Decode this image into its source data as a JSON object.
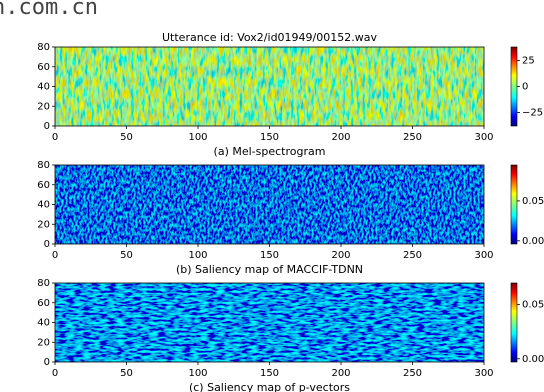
{
  "watermark": "n.com.cn",
  "chart_data": [
    {
      "type": "heatmap",
      "title": "Utterance id: Vox2/id01949/00152.wav",
      "caption": "(a) Mel-spectrogram",
      "xlim": [
        0,
        300
      ],
      "xticks": [
        0,
        50,
        100,
        150,
        200,
        250,
        300
      ],
      "ylim": [
        0,
        80
      ],
      "yticks": [
        0,
        20,
        40,
        60,
        80
      ],
      "colormap": "jet",
      "colorbar": {
        "lim": [
          -38,
          38
        ],
        "ticks": [
          {
            "value": -25,
            "label": "−25"
          },
          0,
          25
        ]
      }
    },
    {
      "type": "heatmap",
      "caption": "(b) Saliency map of MACCIF-TDNN",
      "xlim": [
        0,
        300
      ],
      "xticks": [
        0,
        50,
        100,
        150,
        200,
        250,
        300
      ],
      "ylim": [
        0,
        80
      ],
      "yticks": [
        0,
        20,
        40,
        60,
        80
      ],
      "colormap": "jet",
      "colorbar": {
        "lim": [
          -0.004,
          0.095
        ],
        "ticks": [
          {
            "value": 0,
            "label": "0.00"
          },
          0.05
        ]
      }
    },
    {
      "type": "heatmap",
      "caption": "(c) Saliency map of p-vectors",
      "xlim": [
        0,
        300
      ],
      "xticks": [
        0,
        50,
        100,
        150,
        200,
        250,
        300
      ],
      "ylim": [
        0,
        80
      ],
      "yticks": [
        0,
        20,
        40,
        60,
        80
      ],
      "colormap": "jet",
      "colorbar": {
        "lim": [
          -0.003,
          0.07
        ],
        "ticks": [
          {
            "value": 0,
            "label": "0.00"
          },
          0.05
        ]
      }
    }
  ]
}
